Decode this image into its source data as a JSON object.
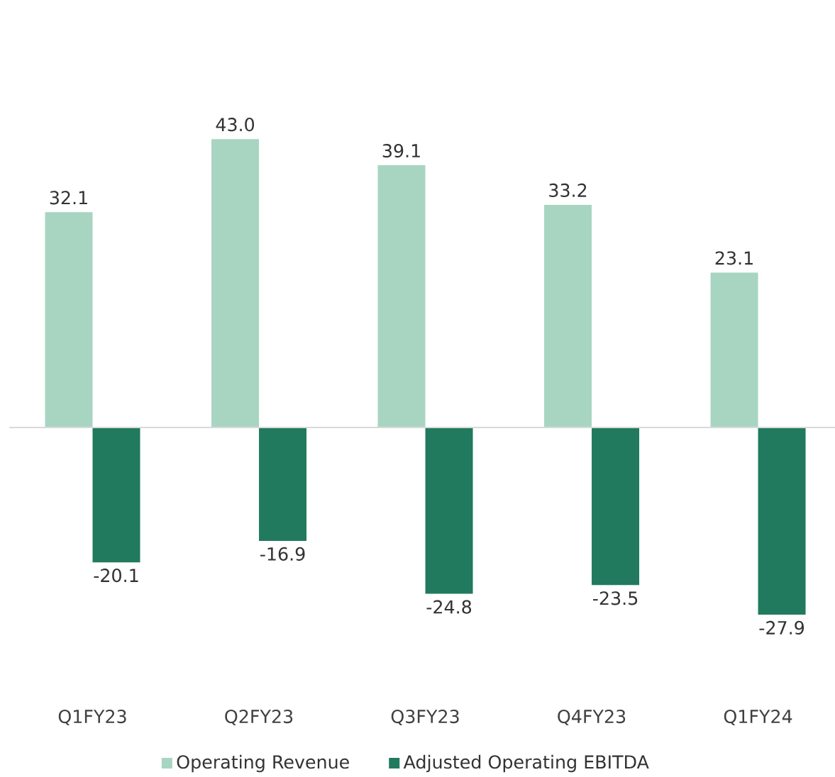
{
  "chart_data": {
    "type": "bar",
    "categories": [
      "Q1FY23",
      "Q2FY23",
      "Q3FY23",
      "Q4FY23",
      "Q1FY24"
    ],
    "series": [
      {
        "name": "Operating Revenue",
        "color": "#a8d5c2",
        "values": [
          32.1,
          43.0,
          39.1,
          33.2,
          23.1
        ],
        "value_labels": [
          "32.1",
          "43.0",
          "39.1",
          "33.2",
          "23.1"
        ]
      },
      {
        "name": "Adjusted Operating EBITDA",
        "color": "#217a5e",
        "values": [
          -20.1,
          -16.9,
          -24.8,
          -23.5,
          -27.9
        ],
        "value_labels": [
          "-20.1",
          "-16.9",
          "-24.8",
          "-23.5",
          "-27.9"
        ]
      }
    ],
    "legend": "bottom"
  }
}
